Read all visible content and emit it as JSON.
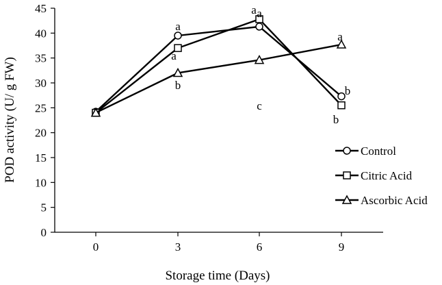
{
  "chart_data": {
    "type": "line",
    "title": "",
    "xlabel": "Storage time (Days)",
    "ylabel": "POD activity (U/ g FW)",
    "x": [
      0,
      3,
      6,
      9
    ],
    "xticks": [
      "0",
      "3",
      "6",
      "9"
    ],
    "ylim": [
      0,
      45
    ],
    "yticks": [
      0,
      5,
      10,
      15,
      20,
      25,
      30,
      35,
      40,
      45
    ],
    "grid": false,
    "legend_position": "right",
    "series": [
      {
        "name": "Control",
        "marker": "circle",
        "values": [
          24.2,
          39.5,
          41.3,
          27.3
        ],
        "labels": [
          "",
          "a",
          "a",
          "b"
        ]
      },
      {
        "name": "Citric Acid",
        "marker": "square",
        "values": [
          24.0,
          37.0,
          42.8,
          25.5
        ],
        "labels": [
          "",
          "a",
          "a",
          "b"
        ]
      },
      {
        "name": "Ascorbic Acid",
        "marker": "triangle",
        "values": [
          24.0,
          32.0,
          34.6,
          37.7
        ],
        "labels": [
          "",
          "b",
          "c",
          "a"
        ]
      }
    ],
    "colors": {
      "line": "#000000",
      "marker_fill": "#ffffff"
    }
  }
}
